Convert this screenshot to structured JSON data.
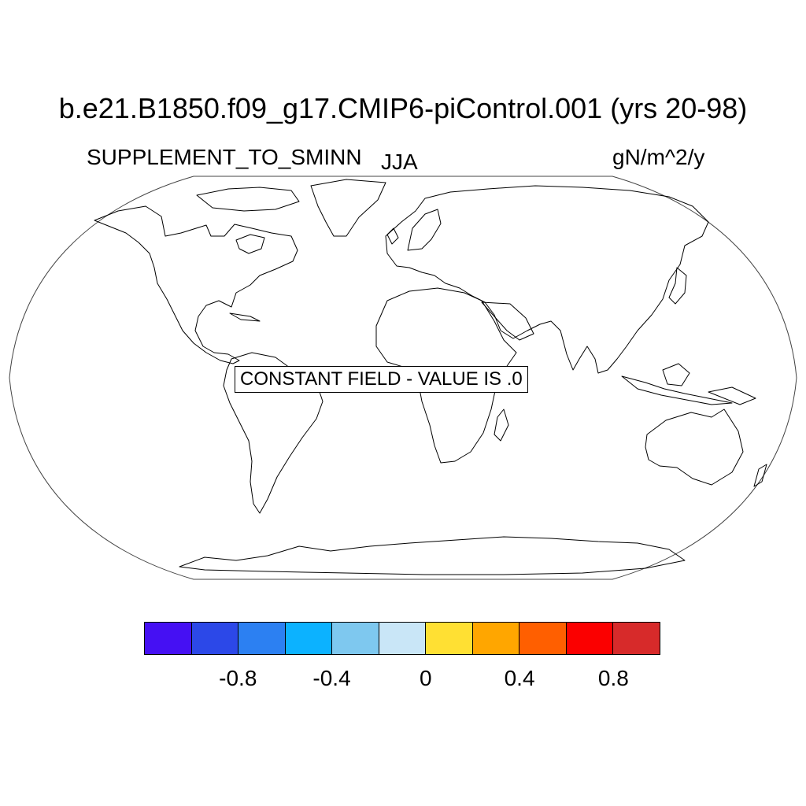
{
  "map": {
    "title": "b.e21.B1850.f09_g17.CMIP6-piControl.001 (yrs 20-98)",
    "variable": "SUPPLEMENT_TO_SMINN",
    "season": "JJA",
    "units": "gN/m^2/y",
    "projection": "robinson",
    "notice": "CONSTANT FIELD - VALUE IS .0"
  },
  "colorbar": {
    "colors": [
      "#4510f3",
      "#2c48e8",
      "#2c80f2",
      "#0cb2ff",
      "#7ec8ef",
      "#c9e6f7",
      "#ffe033",
      "#ffa600",
      "#ff5f00",
      "#fb0000",
      "#d72a2a"
    ],
    "tick_labels": [
      "-0.8",
      "-0.4",
      "0",
      "0.4",
      "0.8"
    ]
  }
}
